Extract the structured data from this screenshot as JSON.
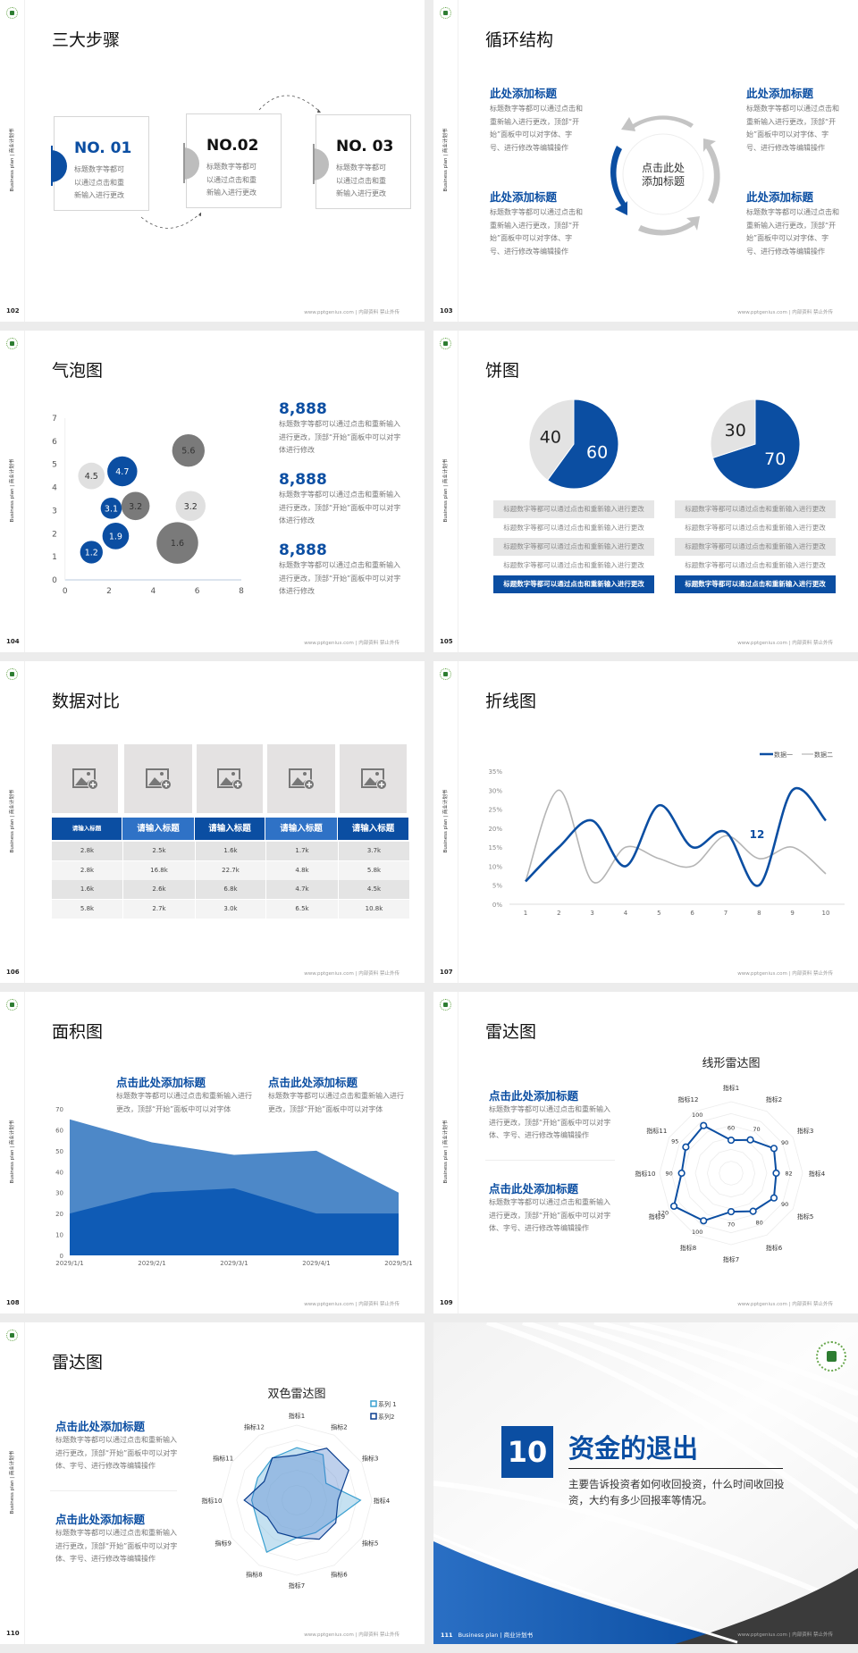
{
  "common": {
    "side_text": "Business plan | 商业计划书",
    "footer": "www.pptgenius.com | 内部资料 禁止外传",
    "colors": {
      "brand_blue": "#0b4ea2",
      "mid_blue": "#3d7fcf",
      "grey": "#bdbdbd",
      "light_grey": "#e3e3e3",
      "dark_grey": "#7a7a7a"
    }
  },
  "slides": [
    {
      "page": "102",
      "title": "三大步骤",
      "steps": [
        {
          "no": "NO. 01",
          "lines": [
            "标题数字等都可",
            "以通过点击和重",
            "新输入进行更改"
          ]
        },
        {
          "no": "NO.02",
          "lines": [
            "标题数字等都可",
            "以通过点击和重",
            "新输入进行更改"
          ]
        },
        {
          "no": "NO. 03",
          "lines": [
            "标题数字等都可",
            "以通过点击和重",
            "新输入进行更改"
          ]
        }
      ]
    },
    {
      "page": "103",
      "title": "循环结构",
      "center": [
        "点击此处",
        "添加标题"
      ],
      "blocks": [
        {
          "heading": "此处添加标题",
          "body": "标题数字等都可以通过点击和重新输入进行更改，顶部“开始”面板中可以对字体、字号、进行修改等编辑操作"
        },
        {
          "heading": "此处添加标题",
          "body": "标题数字等都可以通过点击和重新输入进行更改，顶部“开始”面板中可以对字体、字号、进行修改等编辑操作"
        },
        {
          "heading": "此处添加标题",
          "body": "标题数字等都可以通过点击和重新输入进行更改，顶部“开始”面板中可以对字体、字号、进行修改等编辑操作"
        },
        {
          "heading": "此处添加标题",
          "body": "标题数字等都可以通过点击和重新输入进行更改，顶部“开始”面板中可以对字体、字号、进行修改等编辑操作"
        }
      ]
    },
    {
      "page": "104",
      "title": "气泡图",
      "stats": [
        {
          "value": "8,888",
          "body": "标题数字等都可以通过点击和重新输入进行更改，顶部“开始”面板中可以对字体进行修改"
        },
        {
          "value": "8,888",
          "body": "标题数字等都可以通过点击和重新输入进行更改，顶部“开始”面板中可以对字体进行修改"
        },
        {
          "value": "8,888",
          "body": "标题数字等都可以通过点击和重新输入进行更改，顶部“开始”面板中可以对字体进行修改"
        }
      ]
    },
    {
      "page": "105",
      "title": "饼图",
      "tables": [
        [
          "标题数字等都可以通过点击和重新输入进行更改",
          "标题数字等都可以通过点击和重新输入进行更改",
          "标题数字等都可以通过点击和重新输入进行更改",
          "标题数字等都可以通过点击和重新输入进行更改",
          "标题数字等都可以通过点击和重新输入进行更改"
        ],
        [
          "标题数字等都可以通过点击和重新输入进行更改",
          "标题数字等都可以通过点击和重新输入进行更改",
          "标题数字等都可以通过点击和重新输入进行更改",
          "标题数字等都可以通过点击和重新输入进行更改",
          "标题数字等都可以通过点击和重新输入进行更改"
        ]
      ]
    },
    {
      "page": "106",
      "title": "数据对比",
      "image_placeholder_icon": "add-image-icon",
      "table": {
        "headers": [
          "请输入标题",
          "请输入标题",
          "请输入标题",
          "请输入标题",
          "请输入标题"
        ],
        "rows": [
          [
            "2.8k",
            "2.5k",
            "1.6k",
            "1.7k",
            "3.7k"
          ],
          [
            "2.8k",
            "16.8k",
            "22.7k",
            "4.8k",
            "5.8k"
          ],
          [
            "1.6k",
            "2.6k",
            "6.8k",
            "4.7k",
            "4.5k"
          ],
          [
            "5.8k",
            "2.7k",
            "3.0k",
            "6.5k",
            "10.8k"
          ]
        ]
      }
    },
    {
      "page": "107",
      "title": "折线图"
    },
    {
      "page": "108",
      "title": "面积图",
      "blocks": [
        {
          "heading": "点击此处添加标题",
          "body": "标题数字等都可以通过点击和重新输入进行更改，顶部“开始”面板中可以对字体"
        },
        {
          "heading": "点击此处添加标题",
          "body": "标题数字等都可以通过点击和重新输入进行更改，顶部“开始”面板中可以对字体"
        }
      ]
    },
    {
      "page": "109",
      "title": "雷达图",
      "blocks": [
        {
          "heading": "点击此处添加标题",
          "body": "标题数字等都可以通过点击和重新输入进行更改，顶部“开始”面板中可以对字体、字号、进行修改等编辑操作"
        },
        {
          "heading": "点击此处添加标题",
          "body": "标题数字等都可以通过点击和重新输入进行更改，顶部“开始”面板中可以对字体、字号、进行修改等编辑操作"
        }
      ]
    },
    {
      "page": "110",
      "title": "雷达图",
      "blocks": [
        {
          "heading": "点击此处添加标题",
          "body": "标题数字等都可以通过点击和重新输入进行更改，顶部“开始”面板中可以对字体、字号、进行修改等编辑操作"
        },
        {
          "heading": "点击此处添加标题",
          "body": "标题数字等都可以通过点击和重新输入进行更改，顶部“开始”面板中可以对字体、字号、进行修改等编辑操作"
        }
      ]
    },
    {
      "page": "111",
      "section_number": "10",
      "title": "资金的退出",
      "description": "主要告诉投资者如何收回投资，什么时间收回投资，大约有多少回报率等情况。",
      "footer_left": "Business plan | 商业计划书"
    }
  ],
  "chart_data": [
    {
      "type": "scatter",
      "subtype": "bubble",
      "xlim": [
        0,
        8
      ],
      "ylim": [
        0,
        7
      ],
      "xticks": [
        "0",
        "2",
        "4",
        "6",
        "8"
      ],
      "yticks": [
        "0",
        "1",
        "2",
        "3",
        "4",
        "5",
        "6",
        "7"
      ],
      "points": [
        {
          "x": 1.2,
          "y": 1.2,
          "size": 1.6,
          "label": "1.2",
          "color": "#0b4ea2"
        },
        {
          "x": 2.3,
          "y": 1.9,
          "size": 2.2,
          "label": "1.9",
          "color": "#0b4ea2"
        },
        {
          "x": 2.1,
          "y": 3.1,
          "size": 1.4,
          "label": "3.1",
          "color": "#0b4ea2"
        },
        {
          "x": 3.2,
          "y": 3.2,
          "size": 2.5,
          "label": "3.2",
          "color": "#7a7a7a"
        },
        {
          "x": 1.2,
          "y": 4.5,
          "size": 2.2,
          "label": "4.5",
          "color": "#e0e0e0"
        },
        {
          "x": 2.6,
          "y": 4.7,
          "size": 2.8,
          "label": "4.7",
          "color": "#0b4ea2"
        },
        {
          "x": 5.6,
          "y": 5.6,
          "size": 3.3,
          "label": "5.6",
          "color": "#7a7a7a"
        },
        {
          "x": 5.7,
          "y": 3.2,
          "size": 2.8,
          "label": "3.2",
          "color": "#e0e0e0"
        },
        {
          "x": 5.1,
          "y": 1.6,
          "size": 5.4,
          "label": "1.6",
          "color": "#7a7a7a"
        }
      ]
    },
    {
      "type": "pie",
      "values": [
        60,
        40
      ],
      "labels": [
        "60",
        "40"
      ],
      "colors": [
        "#0b4ea2",
        "#e3e3e3"
      ]
    },
    {
      "type": "pie",
      "values": [
        70,
        30
      ],
      "labels": [
        "70",
        "30"
      ],
      "colors": [
        "#0b4ea2",
        "#e3e3e3"
      ]
    },
    {
      "type": "line",
      "smooth": true,
      "categories": [
        "1",
        "2",
        "3",
        "4",
        "5",
        "6",
        "7",
        "8",
        "9",
        "10"
      ],
      "ylim": [
        0,
        35
      ],
      "yticks": [
        "0%",
        "5%",
        "10%",
        "15%",
        "20%",
        "25%",
        "30%",
        "35%"
      ],
      "legend": "top-right",
      "series": [
        {
          "name": "数据一",
          "values": [
            6,
            15,
            22,
            10,
            26,
            15,
            19,
            5,
            30,
            22
          ],
          "color": "#0b4ea2"
        },
        {
          "name": "数据二",
          "values": [
            6,
            30,
            6,
            15,
            12,
            10,
            18,
            12,
            15,
            8
          ],
          "color": "#b5b5b5"
        }
      ],
      "annotation": "12"
    },
    {
      "type": "area",
      "categories": [
        "2029/1/1",
        "2029/2/1",
        "2029/3/1",
        "2029/4/1",
        "2029/5/1"
      ],
      "ylim": [
        0,
        70
      ],
      "yticks": [
        "0",
        "10",
        "20",
        "30",
        "40",
        "50",
        "60",
        "70"
      ],
      "series": [
        {
          "values": [
            65,
            54,
            48,
            50,
            30
          ],
          "color": "#4d88c8"
        },
        {
          "values": [
            20,
            30,
            32,
            20,
            20
          ],
          "color": "#0f5bb5"
        }
      ]
    },
    {
      "type": "radar",
      "title": "线形雷达图",
      "categories": [
        "指标1",
        "指标2",
        "指标3",
        "指标4",
        "指标5",
        "指标6",
        "指标7",
        "指标8",
        "指标9",
        "指标10",
        "指标11",
        "指标12"
      ],
      "rmax": 130,
      "series": [
        {
          "values": [
            60,
            70,
            90,
            82,
            90,
            80,
            70,
            100,
            120,
            90,
            95,
            100
          ],
          "labels": [
            "60",
            "70",
            "90",
            "82",
            "90",
            "80",
            "70",
            "100",
            "120",
            "90",
            "95",
            "100"
          ],
          "color": "#0b4ea2"
        }
      ]
    },
    {
      "type": "radar",
      "title": "双色雷达图",
      "legend": "top-right",
      "categories": [
        "指标1",
        "指标2",
        "指标3",
        "指标4",
        "指标5",
        "指标6",
        "指标7",
        "指标8",
        "指标9",
        "指标10",
        "指标11",
        "指标12"
      ],
      "rmax": 100,
      "series": [
        {
          "name": "系列 1",
          "values": [
            70,
            70,
            45,
            85,
            55,
            50,
            50,
            80,
            60,
            60,
            60,
            65
          ],
          "color": "#3aa0d0"
        },
        {
          "name": "系列2",
          "values": [
            60,
            80,
            80,
            55,
            60,
            60,
            50,
            50,
            45,
            70,
            50,
            65
          ],
          "color": "#0b3f8f"
        }
      ]
    }
  ]
}
